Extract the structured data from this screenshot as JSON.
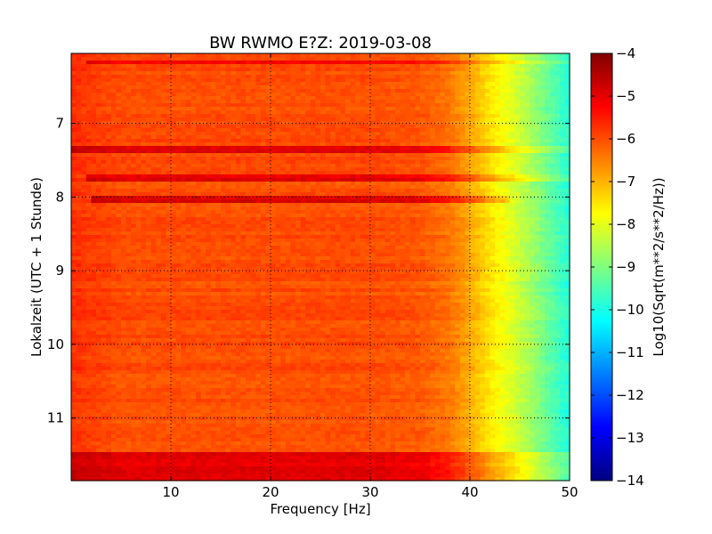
{
  "chart_data": {
    "type": "heatmap",
    "title": "BW RWMO E?Z: 2019-03-08",
    "xlabel": "Frequency [Hz]",
    "ylabel": "Lokalzeit (UTC + 1 Stunde)",
    "xlim": [
      0,
      50
    ],
    "ylim": [
      6.05,
      11.85
    ],
    "y_inverted": true,
    "grid": true,
    "x_ticks": [
      10,
      20,
      30,
      40,
      50
    ],
    "x_tick_labels": [
      "10",
      "20",
      "30",
      "40",
      "50"
    ],
    "y_ticks": [
      7,
      8,
      9,
      10,
      11
    ],
    "y_tick_labels": [
      "7",
      "8",
      "9",
      "10",
      "11"
    ],
    "colorbar": {
      "label": "Log10(Sqrt(m**2/s**2/Hz))",
      "colormap": "jet",
      "range": [
        -14,
        -4
      ],
      "ticks": [
        -4,
        -5,
        -6,
        -7,
        -8,
        -9,
        -10,
        -11,
        -12,
        -13,
        -14
      ],
      "tick_labels": [
        "−4",
        "−5",
        "−6",
        "−7",
        "−8",
        "−9",
        "−10",
        "−11",
        "−12",
        "−13",
        "−14"
      ]
    },
    "spectral_profile": {
      "frequency_hz": [
        0,
        5,
        10,
        20,
        30,
        35,
        38,
        40,
        42,
        44,
        46,
        48,
        50
      ],
      "level": [
        -5.7,
        -6.0,
        -6.0,
        -6.0,
        -6.0,
        -6.1,
        -6.4,
        -6.9,
        -7.5,
        -8.0,
        -8.6,
        -9.3,
        -9.9
      ]
    },
    "high_noise_bands": [
      {
        "time": 6.17,
        "width": 0.04,
        "f_min": 1.5,
        "f_max": 50,
        "offset": 0.8
      },
      {
        "time": 7.37,
        "width": 0.06,
        "f_min": 0,
        "f_max": 50,
        "offset": 1.1
      },
      {
        "time": 7.75,
        "width": 0.05,
        "f_min": 1.5,
        "f_max": 50,
        "offset": 1.0
      },
      {
        "time": 8.04,
        "width": 0.04,
        "f_min": 2.0,
        "f_max": 44,
        "offset": 1.1
      },
      {
        "time": 11.68,
        "width": 0.36,
        "f_min": 0,
        "f_max": 50,
        "offset": 1.0
      }
    ]
  }
}
